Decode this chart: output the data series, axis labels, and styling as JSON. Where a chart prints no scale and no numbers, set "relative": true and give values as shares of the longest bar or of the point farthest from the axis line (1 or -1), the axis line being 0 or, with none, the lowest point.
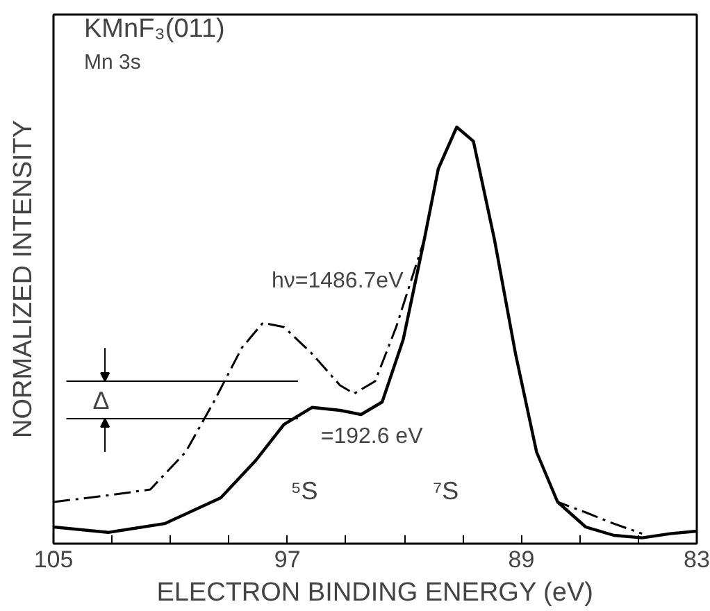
{
  "chart_data": {
    "type": "line",
    "title": "KMnF₃(011)",
    "subtitle": "Mn 3s",
    "xlabel": "ELECTRON BINDING ENERGY (eV)",
    "ylabel": "NORMALIZED INTENSITY",
    "relative": true,
    "xlim": [
      105,
      83
    ],
    "xticks": [
      105,
      {
        "value": 103,
        "label": null
      },
      {
        "value": 101,
        "label": null
      },
      {
        "value": 99,
        "label": null
      },
      97,
      {
        "value": 95,
        "label": null
      },
      {
        "value": 93,
        "label": null
      },
      {
        "value": 91,
        "label": null
      },
      89,
      {
        "value": 87,
        "label": null
      },
      {
        "value": 85,
        "label": null
      },
      83
    ],
    "grid": false,
    "series": [
      {
        "name": "=192.6 eV",
        "color": "#000000",
        "line_style": "solid",
        "x": [
          105.0,
          103.13,
          101.2,
          99.28,
          98.08,
          97.12,
          96.16,
          95.2,
          94.48,
          93.76,
          93.04,
          92.32,
          91.84,
          91.21,
          90.64,
          89.92,
          89.2,
          88.48,
          87.76,
          86.8,
          85.84,
          84.87,
          83.91,
          83.0
        ],
        "values": [
          0.04,
          0.027,
          0.048,
          0.11,
          0.2,
          0.286,
          0.327,
          0.32,
          0.31,
          0.34,
          0.49,
          0.73,
          0.9,
          1.0,
          0.966,
          0.73,
          0.456,
          0.22,
          0.1,
          0.04,
          0.02,
          0.014,
          0.024,
          0.03
        ]
      },
      {
        "name": "hν=1486.7eV",
        "color": "#000000",
        "line_style": "dashdot",
        "x": [
          105.0,
          103.13,
          101.69,
          100.48,
          99.52,
          98.56,
          97.84,
          97.12,
          96.16,
          95.2,
          94.72,
          94.0,
          93.28,
          92.32,
          91.84,
          91.21,
          90.64,
          89.92,
          89.2,
          88.48,
          87.76,
          86.8,
          85.84,
          84.87
        ],
        "values": [
          0.1,
          0.116,
          0.13,
          0.22,
          0.34,
          0.47,
          0.53,
          0.52,
          0.456,
          0.38,
          0.36,
          0.39,
          0.52,
          0.73,
          0.9,
          1.0,
          0.966,
          0.73,
          0.456,
          0.22,
          0.1,
          0.075,
          0.048,
          0.024
        ]
      }
    ],
    "ref_lines": [
      {
        "axis": "y",
        "value": 0.39
      },
      {
        "axis": "y",
        "value": 0.3
      }
    ],
    "annotations": [
      "Δ",
      "⁵S",
      "⁷S"
    ]
  }
}
